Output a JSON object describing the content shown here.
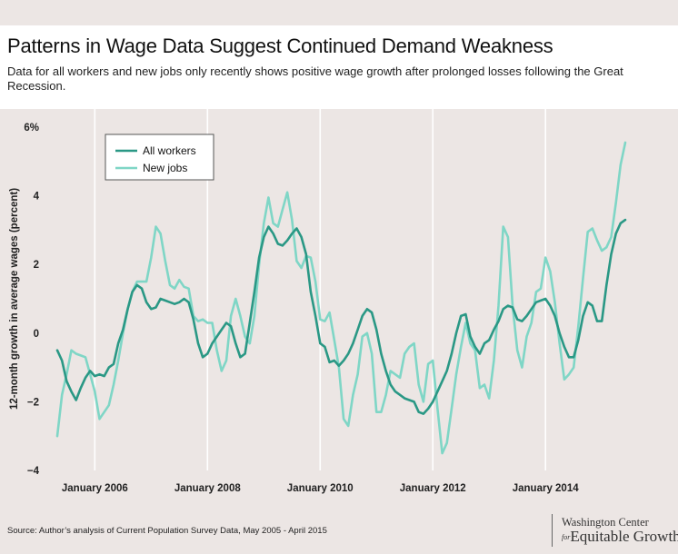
{
  "header": {
    "title": "Patterns in Wage Data Suggest Continued Demand Weakness",
    "subtitle": "Data for all workers and new jobs only recently shows positive wage growth after prolonged losses following the Great Recession."
  },
  "footer": {
    "source": "Source: Author’s analysis of Current Population Survey Data, May 2005 - April 2015",
    "logo_line1": "Washington Center",
    "logo_for": "for",
    "logo_line2": "Equitable Growth"
  },
  "colors": {
    "all_workers": "#2a9885",
    "new_jobs": "#7fd6c6",
    "gridline": "#ffffff",
    "background": "#ece6e4"
  },
  "chart_data": {
    "type": "line",
    "title": "Patterns in Wage Data Suggest Continued Demand Weakness",
    "ylabel": "12-month growth in average wages (percent)",
    "xlabel": "",
    "ylim": [
      -4,
      6
    ],
    "yticks": [
      -4,
      -2,
      0,
      2,
      4,
      6
    ],
    "ytick_labels": [
      "−4",
      "−2",
      "0",
      "2",
      "4",
      "6%"
    ],
    "x_start": "May 2005",
    "x_end": "April 2015",
    "xtick_labels": [
      "January 2006",
      "January 2008",
      "January 2010",
      "January 2012",
      "January 2014"
    ],
    "xtick_month_index": [
      8,
      32,
      56,
      80,
      104
    ],
    "grid": "vertical",
    "legend_position": "top-left",
    "series": [
      {
        "name": "All workers",
        "values": [
          -0.5,
          -0.8,
          -1.4,
          -1.7,
          -1.95,
          -1.6,
          -1.3,
          -1.1,
          -1.25,
          -1.2,
          -1.25,
          -1.0,
          -0.9,
          -0.3,
          0.1,
          0.7,
          1.2,
          1.4,
          1.3,
          0.9,
          0.7,
          0.75,
          1.0,
          0.95,
          0.9,
          0.85,
          0.9,
          1.0,
          0.9,
          0.4,
          -0.3,
          -0.7,
          -0.6,
          -0.3,
          -0.1,
          0.1,
          0.3,
          0.2,
          -0.3,
          -0.7,
          -0.6,
          0.3,
          1.2,
          2.2,
          2.8,
          3.1,
          2.9,
          2.6,
          2.55,
          2.7,
          2.9,
          3.05,
          2.8,
          2.3,
          1.2,
          0.5,
          -0.3,
          -0.4,
          -0.85,
          -0.8,
          -0.95,
          -0.8,
          -0.6,
          -0.3,
          0.1,
          0.5,
          0.7,
          0.6,
          0.1,
          -0.6,
          -1.1,
          -1.5,
          -1.7,
          -1.8,
          -1.9,
          -1.95,
          -2.0,
          -2.3,
          -2.35,
          -2.2,
          -2.0,
          -1.7,
          -1.4,
          -1.1,
          -0.6,
          0.0,
          0.5,
          0.55,
          -0.1,
          -0.4,
          -0.6,
          -0.3,
          -0.2,
          0.1,
          0.35,
          0.7,
          0.8,
          0.75,
          0.4,
          0.35,
          0.5,
          0.7,
          0.9,
          0.95,
          1.0,
          0.8,
          0.5,
          0.0,
          -0.4,
          -0.7,
          -0.7,
          -0.2,
          0.5,
          0.9,
          0.8,
          0.35,
          0.35,
          1.4,
          2.3,
          2.9,
          3.2,
          3.3
        ]
      },
      {
        "name": "New jobs",
        "values": [
          -3.0,
          -1.8,
          -1.2,
          -0.5,
          -0.6,
          -0.65,
          -0.7,
          -1.2,
          -1.7,
          -2.5,
          -2.3,
          -2.1,
          -1.5,
          -0.8,
          0.0,
          0.7,
          1.2,
          1.5,
          1.5,
          1.5,
          2.2,
          3.1,
          2.9,
          2.1,
          1.4,
          1.3,
          1.55,
          1.35,
          1.3,
          0.5,
          0.35,
          0.4,
          0.3,
          0.3,
          -0.5,
          -1.1,
          -0.8,
          0.5,
          1.0,
          0.5,
          -0.1,
          -0.3,
          0.5,
          2.0,
          3.2,
          3.95,
          3.2,
          3.1,
          3.6,
          4.1,
          3.3,
          2.1,
          1.9,
          2.25,
          2.2,
          1.5,
          0.4,
          0.35,
          0.6,
          -0.2,
          -1.0,
          -2.5,
          -2.7,
          -1.8,
          -1.2,
          -0.1,
          0.0,
          -0.6,
          -2.3,
          -2.3,
          -1.8,
          -1.1,
          -1.2,
          -1.3,
          -0.6,
          -0.4,
          -0.3,
          -1.5,
          -2.0,
          -0.9,
          -0.8,
          -2.2,
          -3.5,
          -3.2,
          -2.2,
          -1.2,
          -0.4,
          0.3,
          -0.3,
          -0.5,
          -1.6,
          -1.5,
          -1.9,
          -0.8,
          0.8,
          3.1,
          2.8,
          0.8,
          -0.5,
          -1.0,
          -0.1,
          0.3,
          1.2,
          1.3,
          2.2,
          1.8,
          0.9,
          -0.3,
          -1.35,
          -1.2,
          -1.0,
          0.2,
          1.6,
          2.95,
          3.05,
          2.7,
          2.4,
          2.5,
          2.8,
          3.8,
          4.9,
          5.55
        ]
      }
    ]
  }
}
